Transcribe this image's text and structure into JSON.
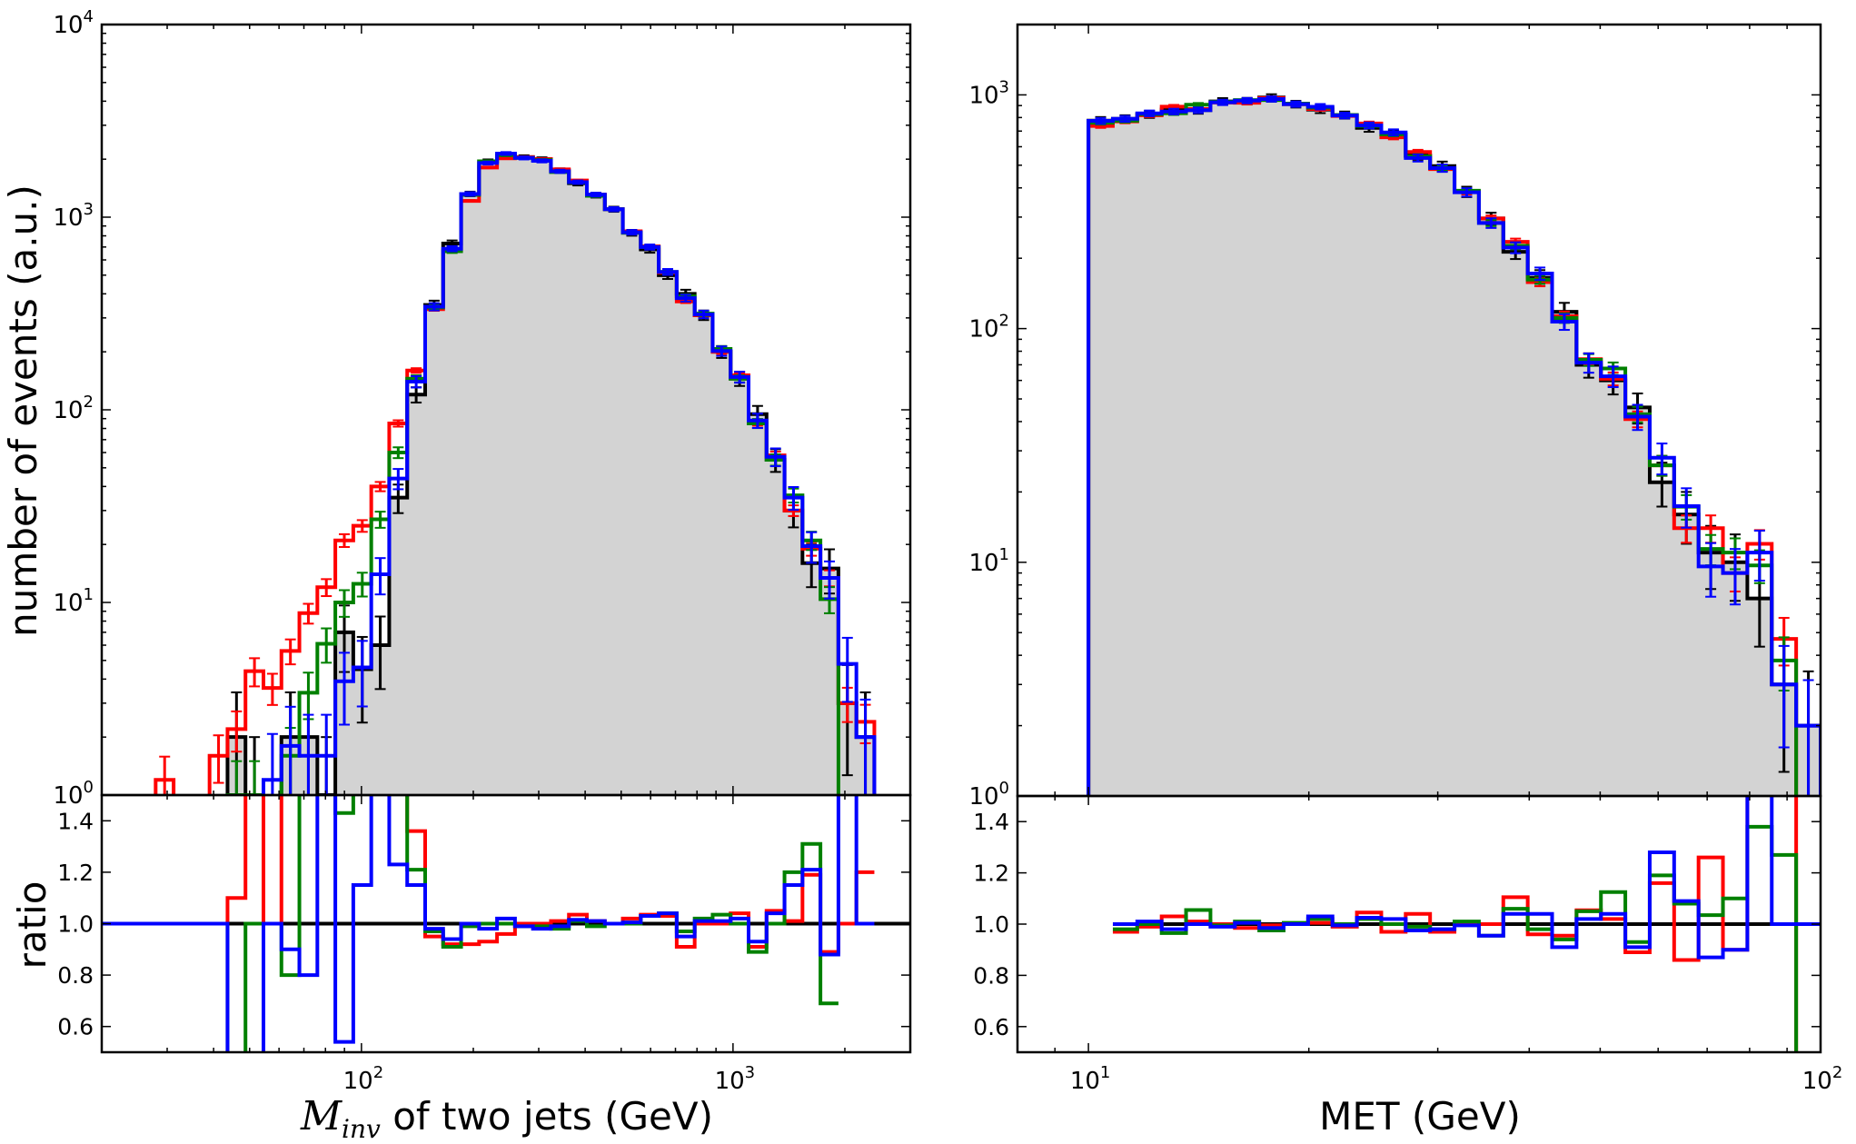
{
  "chart_data": [
    {
      "type": "histogram-step",
      "xscale": "log",
      "yscale": "log",
      "xlim": [
        20,
        3000
      ],
      "ylim": [
        1,
        10000
      ],
      "ratio_ylim": [
        0.5,
        1.5
      ],
      "bins": {
        "min": 20,
        "max": 3000,
        "n": 45,
        "spacing": "log"
      },
      "ylabel": "number of events (a.u.)",
      "ratio_ylabel": "ratio",
      "xlabel": {
        "symbol": "M",
        "subscript": "inv",
        "text": " of two jets (GeV)"
      },
      "ratio_reference": {
        "value": 1.0,
        "from": 20,
        "color": "#000000"
      },
      "xticks": [
        {
          "value": 100,
          "base": "10",
          "exp": "2"
        },
        {
          "value": 1000,
          "base": "10",
          "exp": "3"
        }
      ],
      "yticks": [
        {
          "value": 1,
          "base": "10",
          "exp": "0"
        },
        {
          "value": 10,
          "base": "10",
          "exp": "1"
        },
        {
          "value": 100,
          "base": "10",
          "exp": "2"
        },
        {
          "value": 1000,
          "base": "10",
          "exp": "3"
        },
        {
          "value": 10000,
          "base": "10",
          "exp": "4"
        }
      ],
      "ratio_yticks": [
        {
          "value": 0.6,
          "label": "0.6"
        },
        {
          "value": 0.8,
          "label": "0.8"
        },
        {
          "value": 1.0,
          "label": "1.0"
        },
        {
          "value": 1.2,
          "label": "1.2"
        },
        {
          "value": 1.4,
          "label": "1.4"
        }
      ],
      "series": [
        {
          "color": "#000000",
          "fill": "#d3d3d3",
          "error_scale": 1.0,
          "values": [
            0,
            0,
            0,
            0,
            0,
            0,
            0,
            2,
            1,
            0,
            2,
            2,
            1,
            7,
            4.5,
            6,
            35,
            120,
            350,
            730,
            1320,
            1950,
            2100,
            2050,
            2000,
            1750,
            1500,
            1300,
            1100,
            830,
            680,
            500,
            400,
            310,
            200,
            145,
            95,
            55,
            30,
            16,
            15,
            3,
            2,
            0,
            0
          ],
          "ratio": null
        },
        {
          "color": "#ff0000",
          "error_scale": 0.35,
          "values": [
            0,
            0,
            0,
            1.2,
            0,
            0,
            1.6,
            2.2,
            4.4,
            3.6,
            5.6,
            8.8,
            12,
            21,
            25,
            40,
            85,
            160,
            333,
            672,
            1215,
            1810,
            2020,
            2050,
            2000,
            1770,
            1550,
            1310,
            1100,
            845,
            705,
            515,
            365,
            310,
            200,
            151,
            86,
            58,
            30,
            19,
            13.4,
            3,
            2.4,
            0,
            0
          ],
          "ratio": [
            1,
            1,
            1,
            1,
            1,
            1,
            1,
            1.1,
            4.4,
            1,
            2.8,
            4.4,
            12,
            3,
            5.5,
            6.7,
            2.4,
            1.36,
            0.95,
            0.92,
            0.92,
            0.93,
            0.96,
            1.0,
            1.0,
            1.01,
            1.035,
            1.01,
            1.0,
            1.02,
            1.035,
            1.03,
            0.91,
            1.0,
            1.0,
            1.04,
            0.91,
            1.05,
            1.01,
            1.19,
            0.89,
            1.0,
            1.2,
            null,
            null
          ]
        },
        {
          "color": "#008000",
          "error_scale": 0.5,
          "values": [
            0,
            0,
            0,
            0,
            0,
            0,
            0,
            1,
            1,
            0,
            1.6,
            3.4,
            6.1,
            10,
            12.5,
            27,
            60,
            145,
            340,
            665,
            1305,
            1950,
            2100,
            2030,
            1980,
            1715,
            1515,
            1290,
            1100,
            830,
            700,
            520,
            388,
            316,
            207,
            145,
            85,
            55,
            36,
            21,
            10.4,
            0,
            0,
            0,
            0
          ],
          "ratio": [
            1,
            1,
            1,
            1,
            1,
            1,
            1,
            0,
            1.0,
            1.0,
            0.8,
            1.7,
            6.1,
            1.43,
            2.8,
            4.5,
            1.7,
            1.21,
            0.97,
            0.91,
            0.99,
            1.0,
            1.0,
            0.99,
            0.99,
            0.98,
            1.01,
            0.99,
            1.0,
            1.0,
            1.03,
            1.04,
            0.97,
            1.02,
            1.035,
            1.0,
            0.89,
            1.0,
            1.2,
            1.31,
            0.69,
            null,
            null,
            null,
            null
          ]
        },
        {
          "color": "#0000ff",
          "error_scale": 0.8,
          "values": [
            0,
            0,
            0,
            0,
            0,
            0,
            0,
            0,
            0,
            1.2,
            1.8,
            1.6,
            1.6,
            3.9,
            4.6,
            14,
            44,
            140,
            343,
            686,
            1320,
            1910,
            2140,
            2030,
            1960,
            1730,
            1520,
            1310,
            1100,
            835,
            700,
            520,
            380,
            313,
            202,
            148,
            88,
            57,
            35,
            19.6,
            13.4,
            4.8,
            2.0,
            0,
            0
          ],
          "ratio": [
            1,
            1,
            1,
            1,
            1,
            1,
            1,
            0,
            0,
            1.0,
            0.9,
            0.8,
            1.6,
            0.54,
            1.15,
            2.3,
            1.23,
            1.15,
            0.98,
            0.94,
            1.0,
            0.98,
            1.02,
            0.99,
            0.98,
            0.99,
            1.015,
            1.01,
            1.0,
            1.005,
            1.03,
            1.04,
            0.95,
            1.01,
            1.01,
            1.02,
            0.93,
            1.04,
            1.15,
            1.21,
            0.88,
            1.6,
            1.0,
            null,
            null
          ]
        }
      ]
    },
    {
      "type": "histogram-step",
      "xscale": "log",
      "yscale": "log",
      "xlim": [
        8,
        100
      ],
      "ylim": [
        1,
        2000
      ],
      "ratio_ylim": [
        0.5,
        1.5
      ],
      "bins": {
        "min": 10,
        "max": 100,
        "n": 30,
        "spacing": "log"
      },
      "xlabel_text": "MET (GeV)",
      "ratio_reference": {
        "value": 1.0,
        "from": 10.8,
        "color": "#000000"
      },
      "xticks": [
        {
          "value": 10,
          "base": "10",
          "exp": "1"
        },
        {
          "value": 100,
          "base": "10",
          "exp": "2"
        }
      ],
      "yticks": [
        {
          "value": 1,
          "base": "10",
          "exp": "0"
        },
        {
          "value": 10,
          "base": "10",
          "exp": "1"
        },
        {
          "value": 100,
          "base": "10",
          "exp": "2"
        },
        {
          "value": 1000,
          "base": "10",
          "exp": "3"
        }
      ],
      "ratio_yticks": [
        {
          "value": 0.6,
          "label": "0.6"
        },
        {
          "value": 0.8,
          "label": "0.8"
        },
        {
          "value": 1.0,
          "label": "1.0"
        },
        {
          "value": 1.2,
          "label": "1.2"
        },
        {
          "value": 1.4,
          "label": "1.4"
        }
      ],
      "series": [
        {
          "color": "#000000",
          "fill": "#d3d3d3",
          "error_scale": 1.0,
          "values": [
            776,
            790,
            826,
            866,
            860,
            938,
            940,
            975,
            913,
            865,
            820,
            722,
            678,
            551,
            496,
            385,
            296,
            213,
            165,
            118,
            70,
            60,
            46,
            22,
            16,
            11,
            10,
            7,
            3,
            2
          ],
          "ratio": null
        },
        {
          "color": "#ff0000",
          "error_scale": 0.5,
          "values": [
            736,
            770,
            818,
            891,
            870,
            927,
            925,
            970,
            913,
            870,
            812,
            755,
            658,
            570,
            481,
            385,
            296,
            235,
            158,
            113,
            74,
            61,
            41,
            26,
            14,
            14,
            9,
            12,
            4.7,
            0
          ],
          "ratio": [
            null,
            0.97,
            0.99,
            1.03,
            1.01,
            1.0,
            0.985,
            0.995,
            1.0,
            1.005,
            0.99,
            1.045,
            0.97,
            1.04,
            0.97,
            1.0,
            1.0,
            1.105,
            0.96,
            0.955,
            1.054,
            1.02,
            0.89,
            1.16,
            0.86,
            1.26,
            0.9,
            1.7,
            1.57,
            0
          ]
        },
        {
          "color": "#008000",
          "error_scale": 0.5,
          "values": [
            760,
            775,
            826,
            835,
            908,
            933,
            950,
            950,
            918,
            882,
            820,
            736,
            678,
            546,
            486,
            389,
            283,
            226,
            162,
            111,
            73.5,
            67.5,
            43,
            26,
            17.3,
            11.4,
            11,
            9.7,
            3.8,
            0
          ],
          "ratio": [
            null,
            0.98,
            1.0,
            0.965,
            1.055,
            0.995,
            1.01,
            0.975,
            1.005,
            1.02,
            1.0,
            1.02,
            1.0,
            0.99,
            0.98,
            1.01,
            0.955,
            1.06,
            0.98,
            0.94,
            1.05,
            1.125,
            0.93,
            1.19,
            1.08,
            1.035,
            1.1,
            1.38,
            1.27,
            0
          ]
        },
        {
          "color": "#0000ff",
          "error_scale": 0.8,
          "values": [
            774,
            790,
            834,
            849,
            860,
            929,
            945,
            960,
            913,
            890,
            816,
            740,
            691,
            537,
            486,
            383,
            283,
            222,
            172,
            107,
            71.5,
            62.5,
            42,
            28,
            17.4,
            9.6,
            9,
            11,
            3,
            2
          ],
          "ratio": [
            null,
            1.0,
            1.01,
            0.98,
            1.0,
            0.99,
            1.005,
            0.985,
            1.0,
            1.03,
            0.995,
            1.025,
            1.02,
            0.975,
            0.98,
            0.995,
            0.955,
            1.04,
            1.04,
            0.91,
            1.02,
            1.04,
            0.91,
            1.28,
            1.09,
            0.87,
            0.9,
            1.57,
            1.0,
            1.0
          ]
        }
      ]
    }
  ]
}
